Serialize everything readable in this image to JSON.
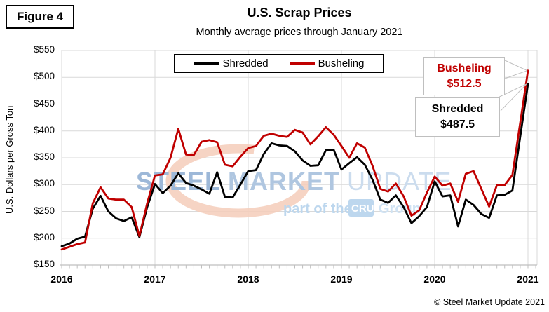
{
  "figure_label": "Figure 4",
  "title": "U.S. Scrap Prices",
  "subtitle": "Monthly average prices through January 2021",
  "y_axis": {
    "title": "U.S. Dollars per Gross Ton",
    "tick_prefix": "$",
    "min": 150,
    "max": 550,
    "step": 50
  },
  "x_axis": {
    "years": [
      "2016",
      "2017",
      "2018",
      "2019",
      "2020",
      "2021"
    ]
  },
  "legend": [
    {
      "label": "Shredded",
      "color": "#000000"
    },
    {
      "label": "Busheling",
      "color": "#C00000"
    }
  ],
  "callouts": [
    {
      "label": "Busheling",
      "value": "$512.5",
      "color": "#C00000"
    },
    {
      "label": "Shredded",
      "value": "$487.5",
      "color": "#000000"
    }
  ],
  "watermark": {
    "word1": "STEEL",
    "word2": "MARKET",
    "word3": "UPDATE",
    "tagline": "part of the",
    "badge": "CRU",
    "group": "Group"
  },
  "copyright": "© Steel Market Update 2021",
  "colors": {
    "shredded": "#000000",
    "busheling": "#C00000",
    "gridline": "#D9D9D9",
    "axis": "#BFBFBF",
    "callout_border": "#BFBFBF",
    "watermark_blue": "#A9C3DF",
    "watermark_swoosh": "#F5CDBA"
  },
  "chart_data": {
    "type": "line",
    "frequency": "monthly",
    "x_start": "2016-01",
    "x_end": "2021-01",
    "x_year_ticks": [
      "2016",
      "2017",
      "2018",
      "2019",
      "2020",
      "2021"
    ],
    "title": "U.S. Scrap Prices",
    "subtitle": "Monthly average prices through January 2021",
    "xlabel": "",
    "ylabel": "U.S. Dollars per Gross Ton",
    "ylim": [
      150,
      550
    ],
    "y_tick_step": 50,
    "grid": true,
    "legend_position": "top-center",
    "series": [
      {
        "name": "Shredded",
        "color": "#000000",
        "end_label": "Shredded $487.5",
        "values": [
          185,
          190,
          199,
          203,
          255,
          279,
          250,
          237,
          232,
          239,
          202,
          258,
          301,
          284,
          298,
          321,
          303,
          298,
          291,
          283,
          323,
          277,
          276,
          300,
          325,
          327,
          357,
          377,
          373,
          372,
          362,
          345,
          335,
          336,
          364,
          365,
          328,
          340,
          351,
          337,
          309,
          272,
          266,
          280,
          258,
          228,
          241,
          258,
          306,
          278,
          280,
          222,
          272,
          262,
          245,
          238,
          280,
          281,
          289,
          389,
          487.5
        ]
      },
      {
        "name": "Busheling",
        "color": "#C00000",
        "end_label": "Busheling $512.5",
        "values": [
          179,
          184,
          189,
          192,
          265,
          295,
          274,
          272,
          272,
          258,
          204,
          265,
          317,
          319,
          350,
          404,
          356,
          355,
          380,
          383,
          379,
          337,
          334,
          352,
          368,
          372,
          391,
          395,
          391,
          389,
          402,
          397,
          375,
          390,
          407,
          393,
          372,
          350,
          377,
          369,
          335,
          292,
          287,
          302,
          278,
          242,
          252,
          285,
          315,
          298,
          302,
          268,
          320,
          325,
          292,
          259,
          299,
          299,
          318,
          415,
          512.5
        ]
      }
    ]
  }
}
